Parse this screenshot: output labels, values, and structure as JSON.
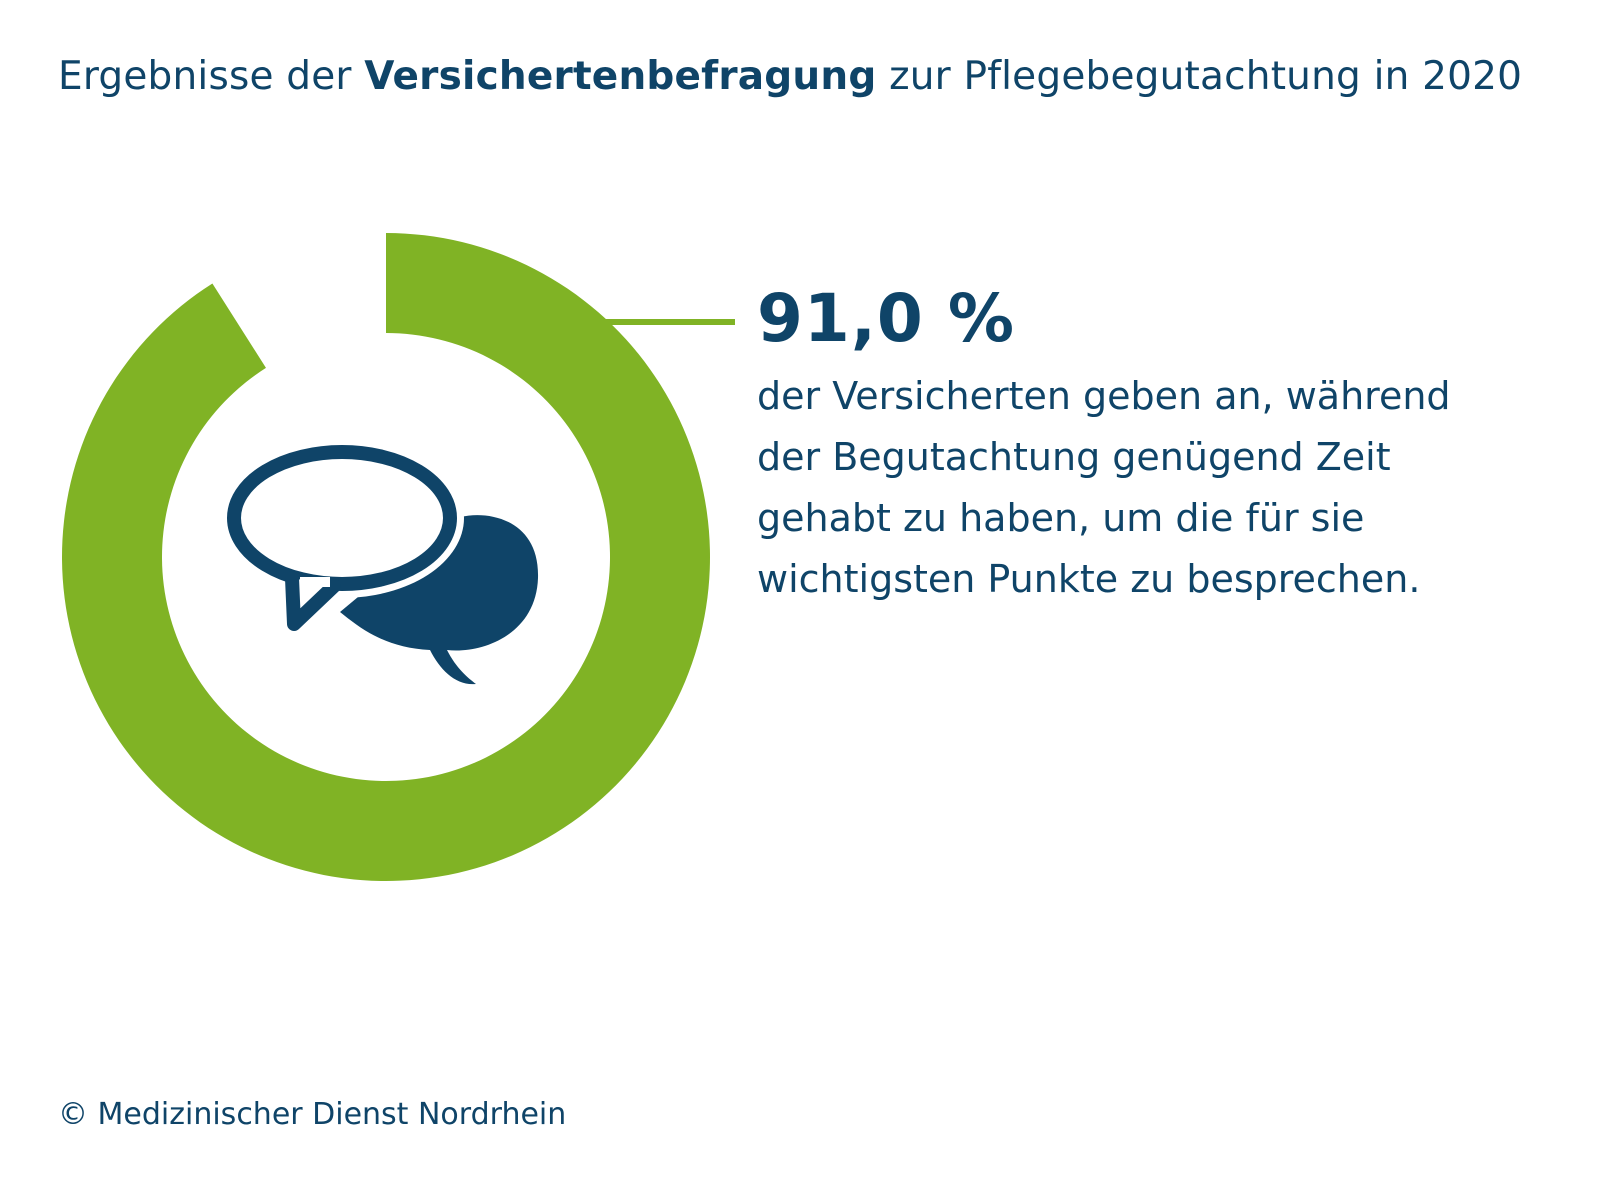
{
  "title": {
    "part1": "Ergebnisse der ",
    "bold": "Versichertenbefragung",
    "part2": " zur Pflegebegutachtung in 2020"
  },
  "chart_data": {
    "type": "pie",
    "values": [
      91.0,
      9.0
    ],
    "value_label": "91,0 %",
    "description_lines": [
      "der Versicherten geben an, während",
      "der Begutachtung genügend Zeit",
      "gehabt zu haben, um die für sie",
      "wichtigsten Punkte zu besprechen."
    ],
    "colors": {
      "highlight": "#80b325",
      "text": "#0f4468"
    }
  },
  "icon": "speech-bubbles-icon",
  "footer": "© Medizinischer Dienst Nordrhein"
}
